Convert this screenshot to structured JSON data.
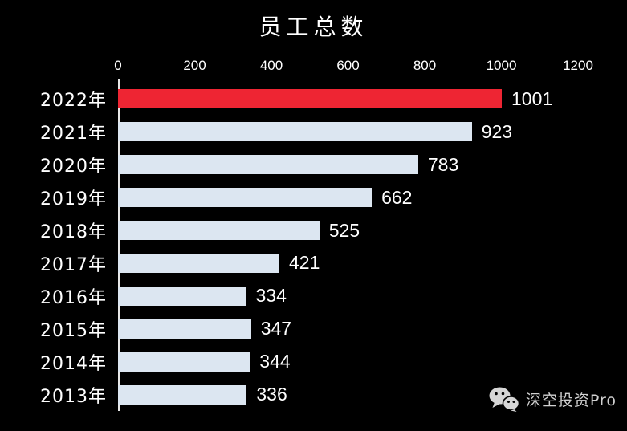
{
  "chart_data": {
    "type": "bar",
    "orientation": "horizontal",
    "title": "员工总数",
    "categories": [
      "2022年",
      "2021年",
      "2020年",
      "2019年",
      "2018年",
      "2017年",
      "2016年",
      "2015年",
      "2014年",
      "2013年"
    ],
    "values": [
      1001,
      923,
      783,
      662,
      525,
      421,
      334,
      347,
      344,
      336
    ],
    "xlim": [
      0,
      1200
    ],
    "x_ticks": [
      0,
      200,
      400,
      600,
      800,
      1000,
      1200
    ],
    "value_labels": true,
    "legend": "none",
    "grid": "off",
    "background_color": "#000000",
    "text_color": "#ffffff",
    "bar_color_default": "#dce6f1",
    "bar_color_highlight": "#ee2533",
    "highlight_index": 0
  },
  "watermark": {
    "label": "深空投资Pro",
    "icon": "wechat-icon",
    "color": "#d0d0d0"
  }
}
